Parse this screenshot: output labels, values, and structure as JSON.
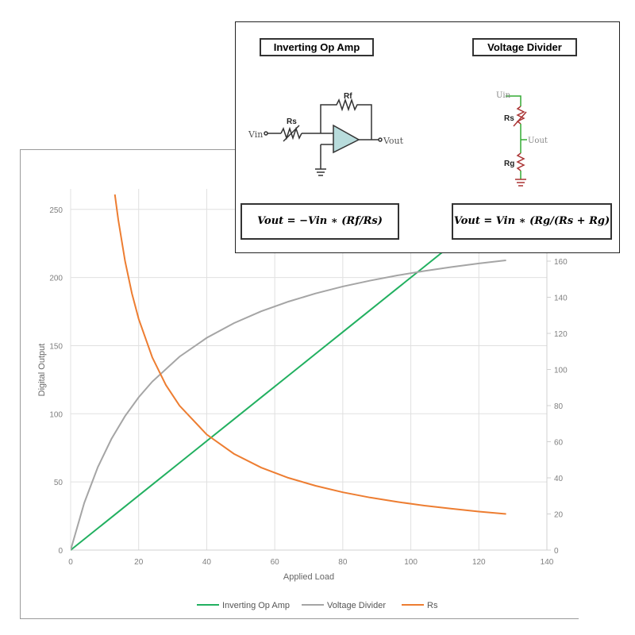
{
  "chart_data": {
    "type": "line",
    "xlabel": "Applied Load",
    "ylabel": "Digital Output",
    "xlim": [
      0,
      140
    ],
    "ylim_left": [
      0,
      265
    ],
    "ylim_right": [
      0,
      200
    ],
    "x_ticks": [
      "0",
      "20",
      "40",
      "60",
      "80",
      "100",
      "120",
      "140"
    ],
    "y_ticks_left": [
      "0",
      "50",
      "100",
      "150",
      "200",
      "250"
    ],
    "y_ticks_right": [
      "0",
      "20",
      "40",
      "60",
      "80",
      "100",
      "120",
      "140",
      "160"
    ],
    "grid": true,
    "legend_position": "bottom",
    "series": [
      {
        "name": "Inverting Op Amp",
        "axis": "left",
        "color": "#22b060",
        "x": [
          0,
          8,
          16,
          24,
          32,
          40,
          48,
          56,
          64,
          72,
          80,
          88,
          96,
          104,
          112,
          120,
          128
        ],
        "y": [
          0,
          16,
          32,
          48,
          64,
          80,
          96,
          112,
          128,
          144,
          160,
          176,
          192,
          208,
          224,
          240,
          256
        ]
      },
      {
        "name": "Voltage Divider",
        "axis": "left",
        "color": "#a5a5a5",
        "x": [
          0,
          4,
          8,
          12,
          16,
          20,
          24,
          32,
          40,
          48,
          56,
          64,
          72,
          80,
          88,
          96,
          104,
          112,
          120,
          128
        ],
        "y": [
          0,
          34.6,
          60.9,
          81.6,
          98.3,
          112.1,
          123.6,
          141.9,
          155.7,
          166.5,
          175.2,
          182.3,
          188.3,
          193.4,
          197.7,
          201.5,
          204.8,
          207.7,
          210.3,
          212.6
        ]
      },
      {
        "name": "Rs",
        "axis": "right",
        "color": "#ed7d31",
        "x": [
          13,
          14,
          16,
          18,
          20,
          24,
          28,
          32,
          40,
          48,
          56,
          64,
          72,
          80,
          88,
          96,
          104,
          112,
          120,
          128
        ],
        "y": [
          196.9,
          182.9,
          160,
          142.2,
          128,
          106.7,
          91.4,
          80,
          64,
          53.3,
          45.7,
          40,
          35.6,
          32,
          29.1,
          26.7,
          24.6,
          22.9,
          21.3,
          20
        ]
      }
    ]
  },
  "inset": {
    "op_amp_title": "Inverting Op Amp",
    "divider_title": "Voltage Divider",
    "op_amp_formula": "Vout = −Vin ∗ (Rf/Rs)",
    "divider_formula": "Vout = Vin ∗ (Rg/(Rs + Rg)",
    "labels": {
      "vin": "Vin",
      "vout": "Vout",
      "rs": "Rs",
      "rf": "Rf",
      "uin": "Uin",
      "uout": "Uout",
      "rs2": "Rs",
      "rg": "Rg"
    }
  }
}
